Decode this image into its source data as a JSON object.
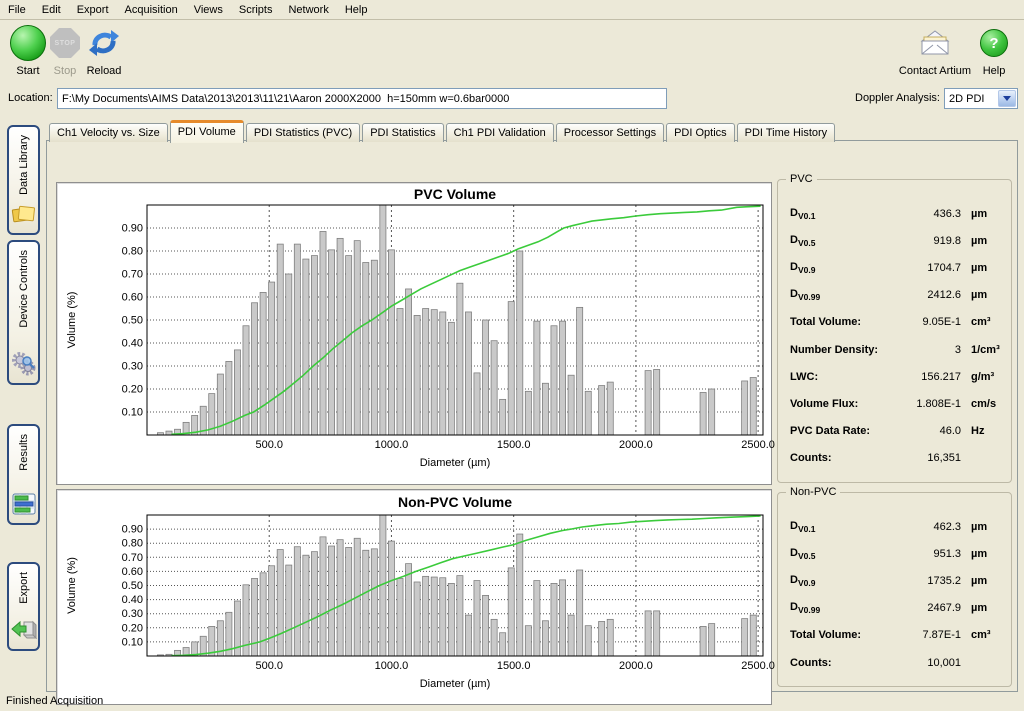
{
  "menu": {
    "items": [
      "File",
      "Edit",
      "Export",
      "Acquisition",
      "Views",
      "Scripts",
      "Network",
      "Help"
    ]
  },
  "toolbar": {
    "start_label": "Start",
    "stop_label": "Stop",
    "stop_badge": "STOP",
    "reload_label": "Reload",
    "contact_label": "Contact Artium",
    "help_label": "Help",
    "help_glyph": "?"
  },
  "location": {
    "label": "Location:",
    "value": "F:\\My Documents\\AIMS Data\\2013\\2013\\11\\21\\Aaron 2000X2000  h=150mm w=0.6bar0000"
  },
  "doppler": {
    "label": "Doppler Analysis:",
    "value": "2D PDI"
  },
  "tabs": {
    "active_index": 1,
    "items": [
      "Ch1 Velocity vs. Size",
      "PDI Volume",
      "PDI Statistics (PVC)",
      "PDI Statistics",
      "Ch1 PDI Validation",
      "Processor Settings",
      "PDI Optics",
      "PDI Time History"
    ]
  },
  "sidebar": {
    "items": [
      {
        "label": "Data Library",
        "icon": "folders-icon"
      },
      {
        "label": "Device Controls",
        "icon": "gears-icon"
      },
      {
        "label": "Results",
        "icon": "bar-chart-icon"
      },
      {
        "label": "Export",
        "icon": "export-arrow-icon"
      }
    ]
  },
  "stats_pvc": {
    "title": "PVC",
    "rows": [
      {
        "base": "D",
        "sub": "V0.1",
        "value": "436.3",
        "unit": "µm"
      },
      {
        "base": "D",
        "sub": "V0.5",
        "value": "919.8",
        "unit": "µm"
      },
      {
        "base": "D",
        "sub": "V0.9",
        "value": "1704.7",
        "unit": "µm"
      },
      {
        "base": "D",
        "sub": "V0.99",
        "value": "2412.6",
        "unit": "µm"
      },
      {
        "label": "Total Volume:",
        "value": "9.05E-1",
        "unit": "cm³"
      },
      {
        "label": "Number Density:",
        "value": "3",
        "unit": "1/cm³"
      },
      {
        "label": "LWC:",
        "value": "156.217",
        "unit": "g/m³"
      },
      {
        "label": "Volume Flux:",
        "value": "1.808E-1",
        "unit": "cm/s"
      },
      {
        "label": "PVC Data Rate:",
        "value": "46.0",
        "unit": "Hz"
      },
      {
        "label": "Counts:",
        "value": "16,351",
        "unit": ""
      }
    ]
  },
  "stats_nonpvc": {
    "title": "Non-PVC",
    "rows": [
      {
        "base": "D",
        "sub": "V0.1",
        "value": "462.3",
        "unit": "µm"
      },
      {
        "base": "D",
        "sub": "V0.5",
        "value": "951.3",
        "unit": "µm"
      },
      {
        "base": "D",
        "sub": "V0.9",
        "value": "1735.2",
        "unit": "µm"
      },
      {
        "base": "D",
        "sub": "V0.99",
        "value": "2467.9",
        "unit": "µm"
      },
      {
        "label": "Total Volume:",
        "value": "7.87E-1",
        "unit": "cm³"
      },
      {
        "label": "Counts:",
        "value": "10,001",
        "unit": ""
      }
    ]
  },
  "status": {
    "text": "Finished Acquisition"
  },
  "colors": {
    "background": "#ECE9D8",
    "bar_fill": "#C9C9C9",
    "bar_stroke": "#7A7A7A",
    "cumulative_line": "#3BCB3B",
    "active_tab_accent": "#E68B2C"
  },
  "chart_data": [
    {
      "type": "bar",
      "title": "PVC Volume",
      "xlabel": "Diameter (µm)",
      "ylabel": "Volume (%)",
      "xlim": [
        0,
        2520
      ],
      "ylim": [
        0,
        1.0
      ],
      "grid": true,
      "xticks": [
        500,
        1000,
        1500,
        2000,
        2500
      ],
      "xtick_labels": [
        "500.0",
        "1000.0",
        "1500.0",
        "2000.0",
        "2500.0"
      ],
      "yticks": [
        0.1,
        0.2,
        0.3,
        0.4,
        0.5,
        0.6,
        0.7,
        0.8,
        0.9
      ],
      "bar_width_um": 25,
      "bars": [
        [
          55,
          0.01
        ],
        [
          90,
          0.017
        ],
        [
          125,
          0.025
        ],
        [
          160,
          0.055
        ],
        [
          195,
          0.085
        ],
        [
          230,
          0.125
        ],
        [
          265,
          0.18
        ],
        [
          300,
          0.265
        ],
        [
          335,
          0.32
        ],
        [
          370,
          0.37
        ],
        [
          405,
          0.475
        ],
        [
          440,
          0.575
        ],
        [
          475,
          0.62
        ],
        [
          510,
          0.665
        ],
        [
          545,
          0.83
        ],
        [
          580,
          0.7
        ],
        [
          615,
          0.83
        ],
        [
          650,
          0.765
        ],
        [
          685,
          0.78
        ],
        [
          720,
          0.885
        ],
        [
          755,
          0.805
        ],
        [
          790,
          0.855
        ],
        [
          825,
          0.78
        ],
        [
          860,
          0.845
        ],
        [
          895,
          0.75
        ],
        [
          930,
          0.76
        ],
        [
          965,
          1.0
        ],
        [
          1000,
          0.805
        ],
        [
          1035,
          0.55
        ],
        [
          1070,
          0.635
        ],
        [
          1105,
          0.52
        ],
        [
          1140,
          0.55
        ],
        [
          1175,
          0.545
        ],
        [
          1210,
          0.535
        ],
        [
          1245,
          0.49
        ],
        [
          1280,
          0.66
        ],
        [
          1315,
          0.535
        ],
        [
          1350,
          0.27
        ],
        [
          1385,
          0.5
        ],
        [
          1420,
          0.41
        ],
        [
          1455,
          0.155
        ],
        [
          1490,
          0.58
        ],
        [
          1525,
          0.8
        ],
        [
          1560,
          0.19
        ],
        [
          1595,
          0.495
        ],
        [
          1630,
          0.225
        ],
        [
          1665,
          0.475
        ],
        [
          1700,
          0.495
        ],
        [
          1735,
          0.26
        ],
        [
          1770,
          0.555
        ],
        [
          1805,
          0.19
        ],
        [
          1860,
          0.215
        ],
        [
          1895,
          0.23
        ],
        [
          2050,
          0.28
        ],
        [
          2085,
          0.285
        ],
        [
          2275,
          0.185
        ],
        [
          2310,
          0.2
        ],
        [
          2445,
          0.235
        ],
        [
          2480,
          0.25
        ]
      ],
      "cumulative_line": {
        "name": "Cumulative Volume Fraction",
        "quantiles": {
          "Dv0.1": 436.3,
          "Dv0.5": 919.8,
          "Dv0.9": 1704.7,
          "Dv0.99": 2412.6
        },
        "points": [
          [
            100,
            0.003
          ],
          [
            150,
            0.006
          ],
          [
            200,
            0.012
          ],
          [
            250,
            0.022
          ],
          [
            300,
            0.038
          ],
          [
            350,
            0.06
          ],
          [
            400,
            0.085
          ],
          [
            436,
            0.1
          ],
          [
            480,
            0.13
          ],
          [
            520,
            0.16
          ],
          [
            560,
            0.19
          ],
          [
            600,
            0.225
          ],
          [
            640,
            0.26
          ],
          [
            680,
            0.3
          ],
          [
            720,
            0.335
          ],
          [
            760,
            0.375
          ],
          [
            800,
            0.41
          ],
          [
            840,
            0.445
          ],
          [
            880,
            0.475
          ],
          [
            920,
            0.5
          ],
          [
            960,
            0.53
          ],
          [
            1000,
            0.56
          ],
          [
            1040,
            0.585
          ],
          [
            1080,
            0.61
          ],
          [
            1120,
            0.635
          ],
          [
            1160,
            0.655
          ],
          [
            1200,
            0.675
          ],
          [
            1240,
            0.695
          ],
          [
            1280,
            0.715
          ],
          [
            1320,
            0.73
          ],
          [
            1360,
            0.745
          ],
          [
            1400,
            0.76
          ],
          [
            1440,
            0.775
          ],
          [
            1480,
            0.79
          ],
          [
            1500,
            0.8
          ],
          [
            1520,
            0.81
          ],
          [
            1560,
            0.825
          ],
          [
            1600,
            0.84
          ],
          [
            1640,
            0.86
          ],
          [
            1680,
            0.885
          ],
          [
            1705,
            0.9
          ],
          [
            1740,
            0.91
          ],
          [
            1780,
            0.92
          ],
          [
            1820,
            0.93
          ],
          [
            1860,
            0.935
          ],
          [
            1900,
            0.94
          ],
          [
            1950,
            0.945
          ],
          [
            2000,
            0.952
          ],
          [
            2050,
            0.958
          ],
          [
            2100,
            0.962
          ],
          [
            2150,
            0.965
          ],
          [
            2200,
            0.968
          ],
          [
            2250,
            0.97
          ],
          [
            2300,
            0.975
          ],
          [
            2350,
            0.978
          ],
          [
            2413,
            0.99
          ],
          [
            2450,
            0.992
          ],
          [
            2510,
            0.995
          ]
        ]
      }
    },
    {
      "type": "bar",
      "title": "Non-PVC Volume",
      "xlabel": "Diameter (µm)",
      "ylabel": "Volume (%)",
      "xlim": [
        0,
        2520
      ],
      "ylim": [
        0,
        1.0
      ],
      "grid": true,
      "xticks": [
        500,
        1000,
        1500,
        2000,
        2500
      ],
      "xtick_labels": [
        "500.0",
        "1000.0",
        "1500.0",
        "2000.0",
        "2500.0"
      ],
      "yticks": [
        0.1,
        0.2,
        0.3,
        0.4,
        0.5,
        0.6,
        0.7,
        0.8,
        0.9
      ],
      "bar_width_um": 25,
      "bars": [
        [
          55,
          0.008
        ],
        [
          90,
          0.012
        ],
        [
          125,
          0.04
        ],
        [
          160,
          0.06
        ],
        [
          195,
          0.1
        ],
        [
          230,
          0.14
        ],
        [
          265,
          0.21
        ],
        [
          300,
          0.25
        ],
        [
          335,
          0.31
        ],
        [
          370,
          0.39
        ],
        [
          405,
          0.505
        ],
        [
          440,
          0.55
        ],
        [
          475,
          0.59
        ],
        [
          510,
          0.64
        ],
        [
          545,
          0.755
        ],
        [
          580,
          0.645
        ],
        [
          615,
          0.775
        ],
        [
          650,
          0.715
        ],
        [
          685,
          0.74
        ],
        [
          720,
          0.845
        ],
        [
          755,
          0.78
        ],
        [
          790,
          0.825
        ],
        [
          825,
          0.77
        ],
        [
          860,
          0.835
        ],
        [
          895,
          0.75
        ],
        [
          930,
          0.76
        ],
        [
          965,
          1.0
        ],
        [
          1000,
          0.815
        ],
        [
          1035,
          0.55
        ],
        [
          1070,
          0.655
        ],
        [
          1105,
          0.525
        ],
        [
          1140,
          0.565
        ],
        [
          1175,
          0.56
        ],
        [
          1210,
          0.555
        ],
        [
          1245,
          0.515
        ],
        [
          1280,
          0.57
        ],
        [
          1315,
          0.29
        ],
        [
          1350,
          0.535
        ],
        [
          1385,
          0.43
        ],
        [
          1420,
          0.26
        ],
        [
          1455,
          0.165
        ],
        [
          1490,
          0.625
        ],
        [
          1525,
          0.865
        ],
        [
          1560,
          0.215
        ],
        [
          1595,
          0.535
        ],
        [
          1630,
          0.25
        ],
        [
          1665,
          0.515
        ],
        [
          1700,
          0.54
        ],
        [
          1735,
          0.29
        ],
        [
          1770,
          0.61
        ],
        [
          1805,
          0.215
        ],
        [
          1860,
          0.245
        ],
        [
          1895,
          0.26
        ],
        [
          2050,
          0.32
        ],
        [
          2085,
          0.32
        ],
        [
          2275,
          0.21
        ],
        [
          2310,
          0.23
        ],
        [
          2445,
          0.265
        ],
        [
          2480,
          0.29
        ]
      ],
      "cumulative_line": {
        "name": "Cumulative Volume Fraction",
        "quantiles": {
          "Dv0.1": 462.3,
          "Dv0.5": 951.3,
          "Dv0.9": 1735.2,
          "Dv0.99": 2467.9
        },
        "points": [
          [
            100,
            0.002
          ],
          [
            150,
            0.005
          ],
          [
            200,
            0.01
          ],
          [
            250,
            0.02
          ],
          [
            300,
            0.033
          ],
          [
            350,
            0.052
          ],
          [
            400,
            0.075
          ],
          [
            462,
            0.1
          ],
          [
            500,
            0.125
          ],
          [
            550,
            0.16
          ],
          [
            600,
            0.2
          ],
          [
            650,
            0.24
          ],
          [
            700,
            0.28
          ],
          [
            750,
            0.325
          ],
          [
            800,
            0.365
          ],
          [
            850,
            0.41
          ],
          [
            900,
            0.455
          ],
          [
            951,
            0.5
          ],
          [
            1000,
            0.535
          ],
          [
            1050,
            0.565
          ],
          [
            1100,
            0.6
          ],
          [
            1150,
            0.63
          ],
          [
            1200,
            0.66
          ],
          [
            1250,
            0.69
          ],
          [
            1300,
            0.71
          ],
          [
            1350,
            0.73
          ],
          [
            1400,
            0.75
          ],
          [
            1450,
            0.77
          ],
          [
            1500,
            0.79
          ],
          [
            1550,
            0.82
          ],
          [
            1600,
            0.845
          ],
          [
            1650,
            0.87
          ],
          [
            1700,
            0.89
          ],
          [
            1735,
            0.9
          ],
          [
            1780,
            0.915
          ],
          [
            1830,
            0.925
          ],
          [
            1880,
            0.935
          ],
          [
            1930,
            0.94
          ],
          [
            1980,
            0.95
          ],
          [
            2030,
            0.955
          ],
          [
            2080,
            0.96
          ],
          [
            2130,
            0.965
          ],
          [
            2180,
            0.968
          ],
          [
            2230,
            0.97
          ],
          [
            2280,
            0.975
          ],
          [
            2330,
            0.98
          ],
          [
            2400,
            0.985
          ],
          [
            2468,
            0.99
          ],
          [
            2510,
            0.993
          ]
        ]
      }
    }
  ]
}
